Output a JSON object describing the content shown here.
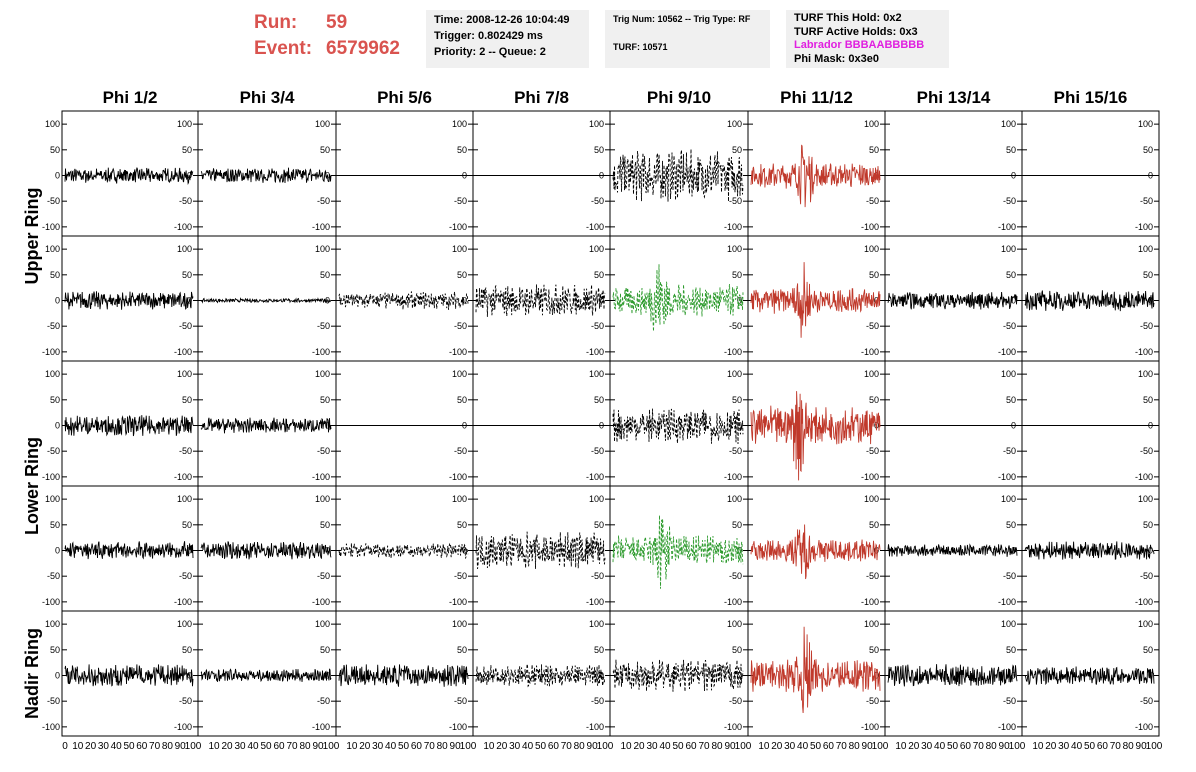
{
  "header": {
    "run_label": "Run:",
    "run_value": "59",
    "event_label": "Event:",
    "event_value": "6579962",
    "box1": [
      "Time: 2008-12-26 10:04:49",
      "Trigger: 0.802429 ms",
      "Priority: 2 -- Queue: 2"
    ],
    "box2": [
      "Trig Num: 10562 -- Trig Type: RF",
      "",
      "TURF: 10571"
    ],
    "box3": [
      "TURF This Hold: 0x2",
      "TURF Active Holds: 0x3",
      "Labrador BBBAABBBBB",
      "Phi Mask: 0x3e0"
    ],
    "labrador_color": "#e020e0",
    "run_color": "#d9534f"
  },
  "chart_data": {
    "type": "line",
    "columns": [
      "Phi 1/2",
      "Phi 3/4",
      "Phi 5/6",
      "Phi 7/8",
      "Phi 9/10",
      "Phi 11/12",
      "Phi 13/14",
      "Phi 15/16"
    ],
    "ring_labels": [
      {
        "label": "Upper Ring",
        "rows": [
          0,
          1
        ]
      },
      {
        "label": "Lower Ring",
        "rows": [
          2,
          3
        ]
      },
      {
        "label": "Nadir Ring",
        "rows": [
          4
        ]
      }
    ],
    "ylim": [
      -110,
      110
    ],
    "yticks": [
      -100,
      -50,
      0,
      50,
      100
    ],
    "xlim": [
      0,
      100
    ],
    "xticks": [
      0,
      10,
      20,
      30,
      40,
      50,
      60,
      70,
      80,
      90,
      100
    ],
    "colors": {
      "k": "#000000",
      "r": "#c0392b",
      "g": "#2e9b2e"
    },
    "traces": [
      [
        {
          "c": "k",
          "s": "solid",
          "a": 12,
          "p": 0
        },
        {
          "c": "k",
          "s": "solid",
          "a": 12,
          "p": 0
        },
        {
          "c": "k",
          "s": "flat"
        },
        {
          "c": "k",
          "s": "flat"
        },
        {
          "c": "k",
          "s": "dash",
          "a": 40,
          "p": 0
        },
        {
          "c": "r",
          "s": "solid",
          "a": 20,
          "p": 42
        },
        {
          "c": "k",
          "s": "flat"
        },
        {
          "c": "k",
          "s": "flat"
        }
      ],
      [
        {
          "c": "k",
          "s": "solid",
          "a": 14,
          "p": 0
        },
        {
          "c": "k",
          "s": "solid",
          "a": 3,
          "p": 0
        },
        {
          "c": "k",
          "s": "dash",
          "a": 14,
          "p": 0
        },
        {
          "c": "k",
          "s": "dash",
          "a": 25,
          "p": 0
        },
        {
          "c": "g",
          "s": "dash",
          "a": 25,
          "p": 36
        },
        {
          "c": "r",
          "s": "solid",
          "a": 20,
          "p": 40
        },
        {
          "c": "k",
          "s": "solid",
          "a": 14,
          "p": 0
        },
        {
          "c": "k",
          "s": "solid",
          "a": 16,
          "p": 0
        }
      ],
      [
        {
          "c": "k",
          "s": "solid",
          "a": 16,
          "p": 0
        },
        {
          "c": "k",
          "s": "solid",
          "a": 12,
          "p": 0
        },
        {
          "c": "k",
          "s": "flat"
        },
        {
          "c": "k",
          "s": "flat"
        },
        {
          "c": "k",
          "s": "dash",
          "a": 28,
          "p": 0
        },
        {
          "c": "r",
          "s": "solid",
          "a": 30,
          "p": 38
        },
        {
          "c": "k",
          "s": "flat"
        },
        {
          "c": "k",
          "s": "flat"
        }
      ],
      [
        {
          "c": "k",
          "s": "solid",
          "a": 14,
          "p": 0
        },
        {
          "c": "k",
          "s": "solid",
          "a": 14,
          "p": 0
        },
        {
          "c": "k",
          "s": "dash",
          "a": 12,
          "p": 0
        },
        {
          "c": "k",
          "s": "dash",
          "a": 30,
          "p": 0
        },
        {
          "c": "g",
          "s": "dash",
          "a": 25,
          "p": 38
        },
        {
          "c": "r",
          "s": "solid",
          "a": 18,
          "p": 40
        },
        {
          "c": "k",
          "s": "solid",
          "a": 10,
          "p": 0
        },
        {
          "c": "k",
          "s": "solid",
          "a": 14,
          "p": 0
        }
      ],
      [
        {
          "c": "k",
          "s": "solid",
          "a": 18,
          "p": 0
        },
        {
          "c": "k",
          "s": "solid",
          "a": 10,
          "p": 0
        },
        {
          "c": "k",
          "s": "solid",
          "a": 18,
          "p": 0
        },
        {
          "c": "k",
          "s": "dash",
          "a": 18,
          "p": 0
        },
        {
          "c": "k",
          "s": "dash",
          "a": 25,
          "p": 0
        },
        {
          "c": "r",
          "s": "solid",
          "a": 25,
          "p": 42
        },
        {
          "c": "k",
          "s": "solid",
          "a": 18,
          "p": 0
        },
        {
          "c": "k",
          "s": "solid",
          "a": 14,
          "p": 0
        }
      ]
    ]
  }
}
